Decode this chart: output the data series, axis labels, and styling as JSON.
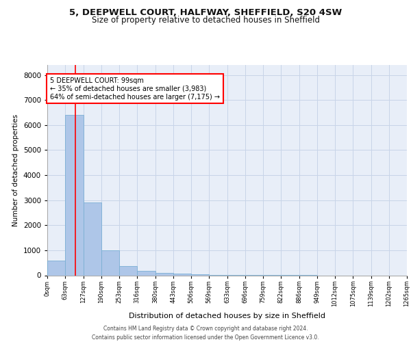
{
  "title": "5, DEEPWELL COURT, HALFWAY, SHEFFIELD, S20 4SW",
  "subtitle": "Size of property relative to detached houses in Sheffield",
  "xlabel": "Distribution of detached houses by size in Sheffield",
  "ylabel": "Number of detached properties",
  "footer_line1": "Contains HM Land Registry data © Crown copyright and database right 2024.",
  "footer_line2": "Contains public sector information licensed under the Open Government Licence v3.0.",
  "annotation_line1": "5 DEEPWELL COURT: 99sqm",
  "annotation_line2": "← 35% of detached houses are smaller (3,983)",
  "annotation_line3": "64% of semi-detached houses are larger (7,175) →",
  "bar_values": [
    600,
    6400,
    2900,
    1000,
    380,
    190,
    100,
    80,
    30,
    10,
    5,
    3,
    2,
    1,
    1,
    0,
    0,
    0,
    0,
    0
  ],
  "bin_edges": [
    0,
    63,
    127,
    190,
    253,
    316,
    380,
    443,
    506,
    569,
    633,
    696,
    759,
    822,
    886,
    949,
    1012,
    1075,
    1139,
    1202,
    1265
  ],
  "tick_labels": [
    "0sqm",
    "63sqm",
    "127sqm",
    "190sqm",
    "253sqm",
    "316sqm",
    "380sqm",
    "443sqm",
    "506sqm",
    "569sqm",
    "633sqm",
    "696sqm",
    "759sqm",
    "822sqm",
    "886sqm",
    "949sqm",
    "1012sqm",
    "1075sqm",
    "1139sqm",
    "1202sqm",
    "1265sqm"
  ],
  "bar_color": "#aec6e8",
  "bar_edge_color": "#7aafd4",
  "grid_color": "#d0d8e8",
  "background_color": "#e8eef8",
  "red_line_x": 99,
  "ylim": [
    0,
    8400
  ],
  "yticks": [
    0,
    1000,
    2000,
    3000,
    4000,
    5000,
    6000,
    7000,
    8000
  ]
}
